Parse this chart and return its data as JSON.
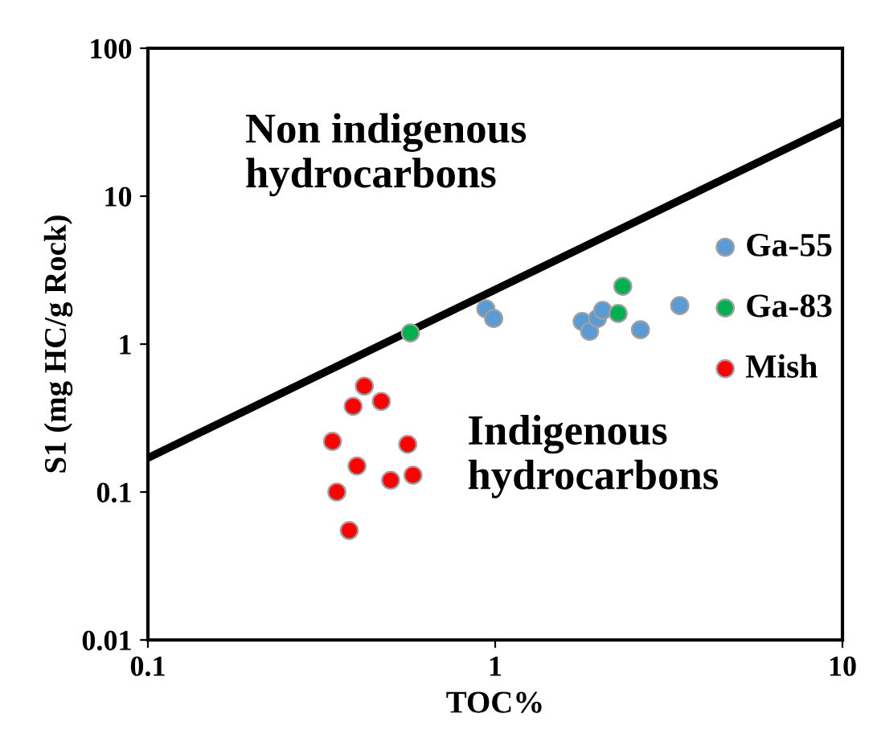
{
  "chart_data": {
    "type": "scatter",
    "xlabel": "TOC%",
    "ylabel": "S1 (mg HC/g Rock)",
    "log": "xy",
    "xlim": [
      0.1,
      10
    ],
    "ylim": [
      0.01,
      100
    ],
    "xticks": [
      0.1,
      1,
      10
    ],
    "yticks": [
      0.01,
      0.1,
      1,
      10,
      100
    ],
    "grid": false,
    "legend": "right",
    "marker": "circle",
    "annotations": [
      "Non indigenous\nhydrocarbons",
      "Indigenous\nhydrocarbons"
    ],
    "series": [
      {
        "type": "line",
        "marker": "none",
        "color": "#000000",
        "x": [
          0.1,
          10
        ],
        "values": [
          0.17,
          32
        ]
      },
      {
        "name": "Ga-55",
        "color": "#5b9bd5",
        "x": [
          0.94,
          0.99,
          1.78,
          1.87,
          1.97,
          2.04,
          2.62,
          3.4
        ],
        "values": [
          1.73,
          1.49,
          1.42,
          1.22,
          1.49,
          1.69,
          1.25,
          1.82
        ]
      },
      {
        "name": "Ga-83",
        "color": "#00b050",
        "x": [
          2.33,
          2.26,
          0.57
        ],
        "values": [
          2.46,
          1.61,
          1.19
        ]
      },
      {
        "name": "Mish",
        "color": "#ff0000",
        "x": [
          0.42,
          0.39,
          0.47,
          0.34,
          0.56,
          0.4,
          0.5,
          0.58,
          0.35,
          0.38
        ],
        "values": [
          0.52,
          0.38,
          0.41,
          0.22,
          0.21,
          0.15,
          0.12,
          0.13,
          0.1,
          0.055
        ]
      }
    ]
  }
}
